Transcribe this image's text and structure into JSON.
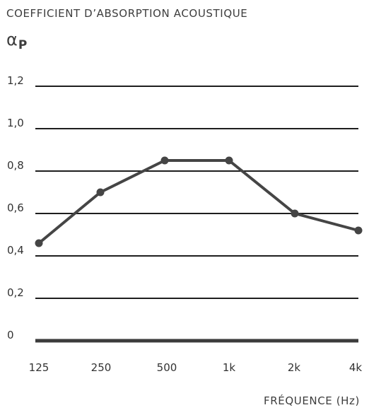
{
  "chart_data": {
    "type": "line",
    "title": "COEFFICIENT D’ABSORPTION ACOUSTIQUE",
    "ylabel": {
      "symbol": "α",
      "subscript": "P"
    },
    "xlabel": "FRÉQUENCE (Hz)",
    "categories": [
      "125",
      "250",
      "500",
      "1k",
      "2k",
      "4k"
    ],
    "values": [
      0.46,
      0.7,
      0.85,
      0.85,
      0.6,
      0.52
    ],
    "yticks": [
      "0",
      "0,2",
      "0,4",
      "0,6",
      "0,8",
      "1,0",
      "1,2"
    ],
    "ytick_values": [
      0,
      0.2,
      0.4,
      0.6,
      0.8,
      1.0,
      1.2
    ],
    "ylim": [
      0,
      1.2
    ],
    "grid": true,
    "line_color": "#454545",
    "grid_color": "#1e1e1e"
  }
}
